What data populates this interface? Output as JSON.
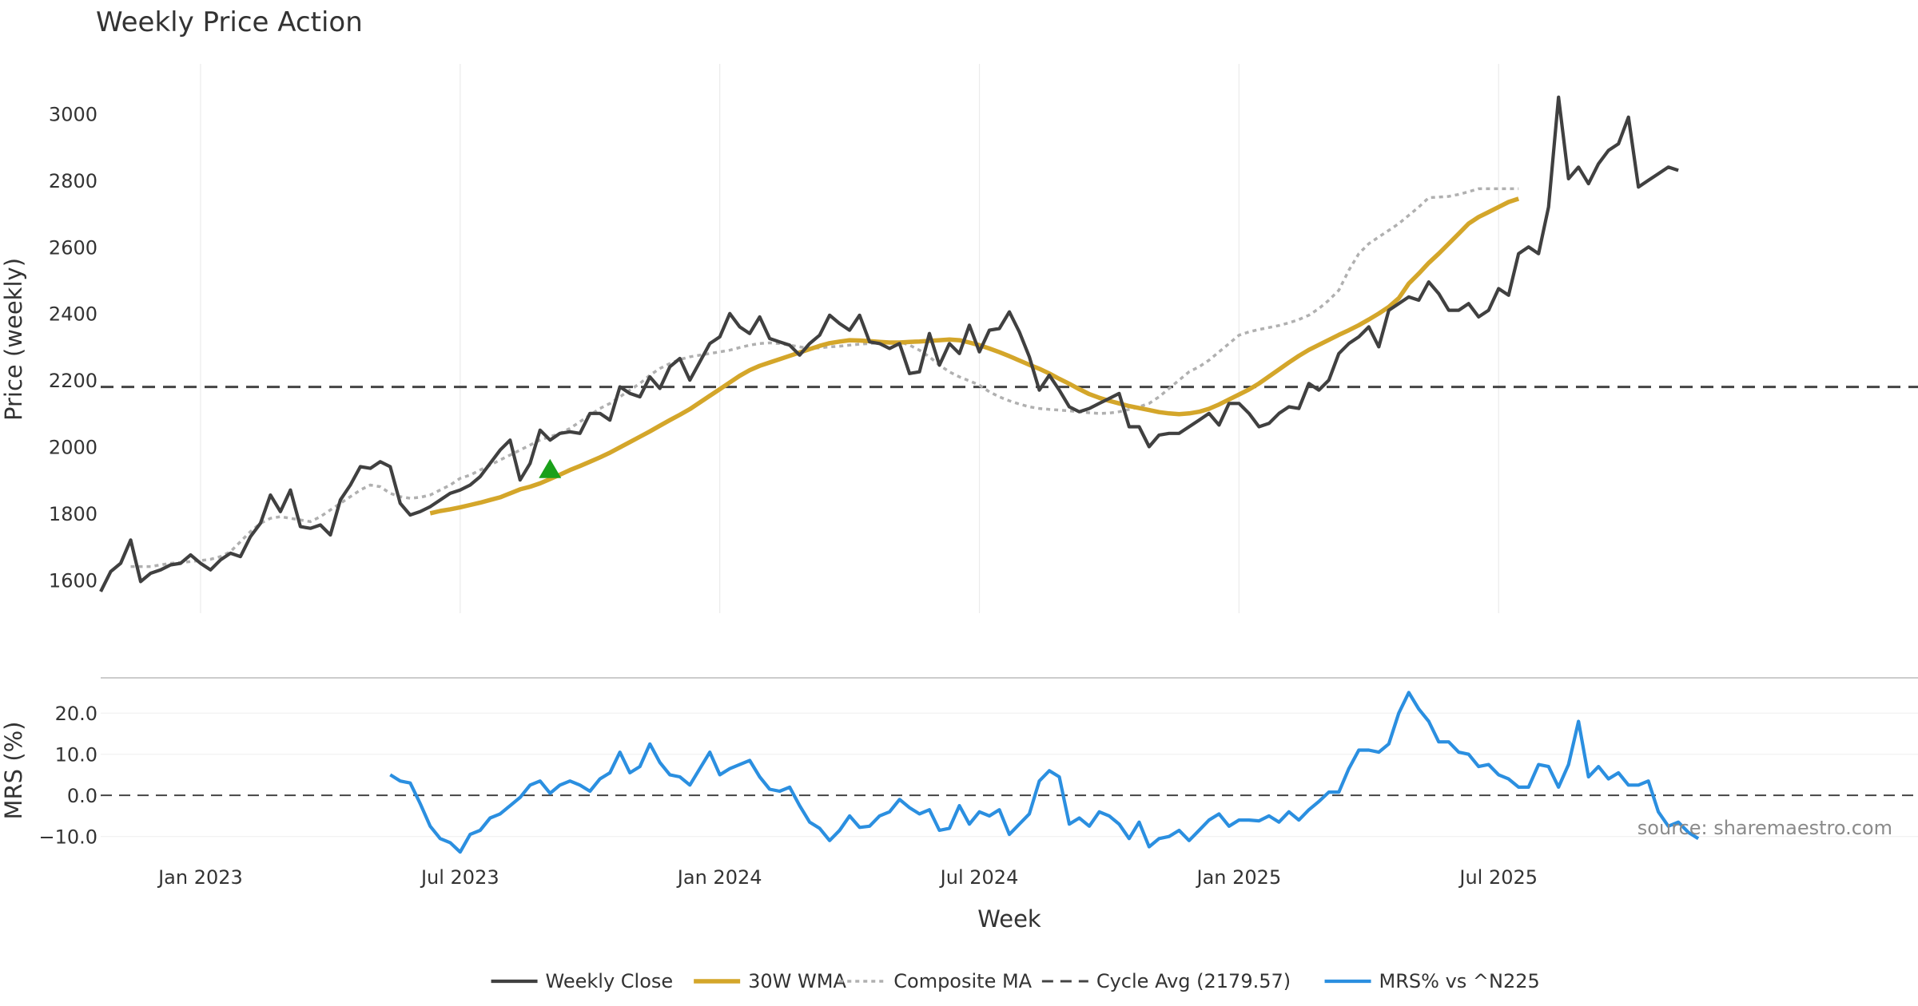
{
  "chart_data": {
    "type": "line",
    "title": "Weekly Price Action",
    "xlabel": "Week",
    "x_tick_labels": [
      "Jan 2023",
      "Jul 2023",
      "Jan 2024",
      "Jul 2024",
      "Jan 2025",
      "Jul 2025"
    ],
    "source_label": "source: sharemaestro.com",
    "colors": {
      "close": "#404040",
      "wma": "#d4a62a",
      "composite": "#b0b0b0",
      "cycle": "#444444",
      "mrs": "#2b8fe0",
      "marker": "#1aa01a"
    },
    "price_panel": {
      "ylabel": "Price (weekly)",
      "ylim": [
        1500,
        3150
      ],
      "yticks": [
        1600,
        1800,
        2000,
        2200,
        2400,
        2600,
        2800,
        3000
      ],
      "week_range": [
        -10,
        172
      ],
      "series": [
        {
          "name": "Weekly Close",
          "start_week": -10,
          "values": [
            1565,
            1625,
            1650,
            1720,
            1595,
            1620,
            1630,
            1645,
            1650,
            1675,
            1650,
            1630,
            1660,
            1680,
            1670,
            1730,
            1770,
            1855,
            1805,
            1870,
            1760,
            1755,
            1765,
            1735,
            1840,
            1885,
            1940,
            1935,
            1955,
            1940,
            1830,
            1795,
            1805,
            1820,
            1840,
            1860,
            1870,
            1885,
            1910,
            1950,
            1990,
            2020,
            1900,
            1950,
            2050,
            2020,
            2040,
            2045,
            2040,
            2100,
            2100,
            2080,
            2180,
            2160,
            2150,
            2210,
            2175,
            2240,
            2265,
            2200,
            2255,
            2310,
            2330,
            2400,
            2360,
            2340,
            2390,
            2325,
            2315,
            2305,
            2275,
            2310,
            2335,
            2395,
            2370,
            2350,
            2395,
            2315,
            2310,
            2295,
            2310,
            2220,
            2225,
            2340,
            2245,
            2310,
            2280,
            2365,
            2285,
            2350,
            2355,
            2405,
            2345,
            2270,
            2170,
            2215,
            2170,
            2120,
            2105,
            2115,
            2130,
            2145,
            2160,
            2060,
            2060,
            2000,
            2035,
            2040,
            2040,
            2060,
            2080,
            2100,
            2065,
            2130,
            2130,
            2100,
            2060,
            2070,
            2100,
            2120,
            2115,
            2190,
            2170,
            2200,
            2280,
            2310,
            2330,
            2360,
            2300,
            2410,
            2430,
            2450,
            2440,
            2495,
            2460,
            2410,
            2410,
            2430,
            2390,
            2410,
            2475,
            2455,
            2580,
            2600,
            2580,
            2720,
            3050,
            2805,
            2840,
            2790,
            2850,
            2890,
            2910,
            2990,
            2780,
            2800,
            2820,
            2840,
            2830
          ]
        },
        {
          "name": "30W WMA",
          "start_week": 23,
          "values": [
            1800,
            1807,
            1812,
            1818,
            1825,
            1832,
            1840,
            1848,
            1860,
            1872,
            1880,
            1890,
            1903,
            1916,
            1930,
            1942,
            1955,
            1968,
            1982,
            1998,
            2014,
            2030,
            2046,
            2063,
            2080,
            2096,
            2113,
            2133,
            2153,
            2173,
            2193,
            2213,
            2230,
            2243,
            2253,
            2263,
            2273,
            2283,
            2293,
            2303,
            2311,
            2316,
            2320,
            2319,
            2317,
            2315,
            2313,
            2313,
            2315,
            2316,
            2318,
            2320,
            2322,
            2320,
            2313,
            2305,
            2295,
            2284,
            2272,
            2259,
            2246,
            2234,
            2220,
            2204,
            2189,
            2173,
            2158,
            2147,
            2138,
            2130,
            2122,
            2116,
            2110,
            2104,
            2100,
            2098,
            2100,
            2105,
            2114,
            2127,
            2142,
            2157,
            2172,
            2190,
            2211,
            2232,
            2253,
            2273,
            2291,
            2306,
            2321,
            2336,
            2350,
            2365,
            2382,
            2400,
            2420,
            2446,
            2490,
            2520,
            2552,
            2580,
            2610,
            2640,
            2670,
            2690,
            2705,
            2720,
            2735,
            2745
          ]
        },
        {
          "name": "Composite MA",
          "start_week": -7,
          "values": [
            1640,
            1640,
            1640,
            1645,
            1650,
            1652,
            1655,
            1658,
            1662,
            1670,
            1685,
            1715,
            1745,
            1770,
            1785,
            1790,
            1785,
            1780,
            1775,
            1790,
            1810,
            1830,
            1850,
            1870,
            1885,
            1880,
            1860,
            1850,
            1845,
            1848,
            1855,
            1870,
            1885,
            1905,
            1915,
            1930,
            1945,
            1960,
            1975,
            1990,
            2005,
            2020,
            2030,
            2040,
            2055,
            2075,
            2095,
            2115,
            2130,
            2150,
            2170,
            2190,
            2215,
            2235,
            2250,
            2262,
            2270,
            2275,
            2280,
            2285,
            2290,
            2298,
            2305,
            2310,
            2312,
            2310,
            2305,
            2300,
            2295,
            2297,
            2300,
            2302,
            2305,
            2308,
            2310,
            2312,
            2315,
            2315,
            2305,
            2290,
            2270,
            2245,
            2225,
            2210,
            2198,
            2185,
            2165,
            2150,
            2138,
            2128,
            2120,
            2115,
            2112,
            2110,
            2108,
            2105,
            2102,
            2100,
            2101,
            2105,
            2112,
            2120,
            2130,
            2150,
            2175,
            2200,
            2225,
            2240,
            2260,
            2285,
            2310,
            2335,
            2345,
            2352,
            2358,
            2364,
            2372,
            2382,
            2395,
            2415,
            2440,
            2470,
            2530,
            2580,
            2610,
            2630,
            2650,
            2670,
            2695,
            2720,
            2748,
            2750,
            2752,
            2758,
            2766,
            2775,
            2775,
            2775,
            2775,
            2775
          ]
        },
        {
          "name": "Cycle Avg (2179.57)",
          "value": 2179.57
        }
      ],
      "markers": [
        {
          "name": "entry-signal",
          "week": 35,
          "value": 1930,
          "shape": "triangle-up"
        }
      ]
    },
    "mrs_panel": {
      "ylabel": "MRS (%)",
      "ylim": [
        -15.5,
        28
      ],
      "yticks": [
        20.0,
        10.0,
        0.0,
        -10.0
      ],
      "ytick_labels": [
        "20.0",
        "10.0",
        "0.0",
        "−10.0"
      ],
      "series": [
        {
          "name": "MRS% vs ^N225",
          "start_week": 19,
          "values": [
            5.0,
            3.5,
            3.0,
            -2.0,
            -7.5,
            -10.5,
            -11.5,
            -13.8,
            -9.5,
            -8.5,
            -5.5,
            -4.5,
            -2.5,
            -0.5,
            2.5,
            3.5,
            0.5,
            2.5,
            3.5,
            2.5,
            1.0,
            4.0,
            5.5,
            10.5,
            5.5,
            7.0,
            12.5,
            8.0,
            5.0,
            4.5,
            2.5,
            6.5,
            10.5,
            5.0,
            6.5,
            7.5,
            8.5,
            4.5,
            1.5,
            1.0,
            2.0,
            -2.5,
            -6.5,
            -8.0,
            -11.0,
            -8.5,
            -5.0,
            -7.8,
            -7.5,
            -5.0,
            -4.0,
            -1.0,
            -3.0,
            -4.5,
            -3.5,
            -8.5,
            -8.0,
            -2.5,
            -7.0,
            -4.0,
            -5.0,
            -3.5,
            -9.5,
            -7.0,
            -4.5,
            3.5,
            6.0,
            4.5,
            -7.0,
            -5.5,
            -7.5,
            -4.0,
            -5.0,
            -7.0,
            -10.5,
            -6.5,
            -12.5,
            -10.5,
            -10.0,
            -8.5,
            -11.0,
            -8.5,
            -6.0,
            -4.5,
            -7.5,
            -6.0,
            -6.0,
            -6.2,
            -5.0,
            -6.5,
            -4.0,
            -6.0,
            -3.5,
            -1.5,
            0.8,
            0.8,
            6.5,
            11.0,
            11.0,
            10.5,
            12.5,
            20.0,
            25.0,
            21.0,
            18.0,
            13.0,
            13.0,
            10.5,
            10.0,
            7.0,
            7.5,
            5.0,
            4.0,
            2.0,
            2.0,
            7.5,
            7.0,
            2.0,
            7.5,
            18.0,
            4.5,
            7.0,
            4.0,
            5.5,
            2.5,
            2.5,
            3.5,
            -4.0,
            -7.5,
            -6.5,
            -9.0,
            -10.5
          ]
        }
      ]
    },
    "legend": {
      "position": "bottom-center",
      "entries": [
        "Weekly Close",
        "30W WMA",
        "Composite MA",
        "Cycle Avg (2179.57)",
        "MRS% vs ^N225"
      ]
    }
  }
}
